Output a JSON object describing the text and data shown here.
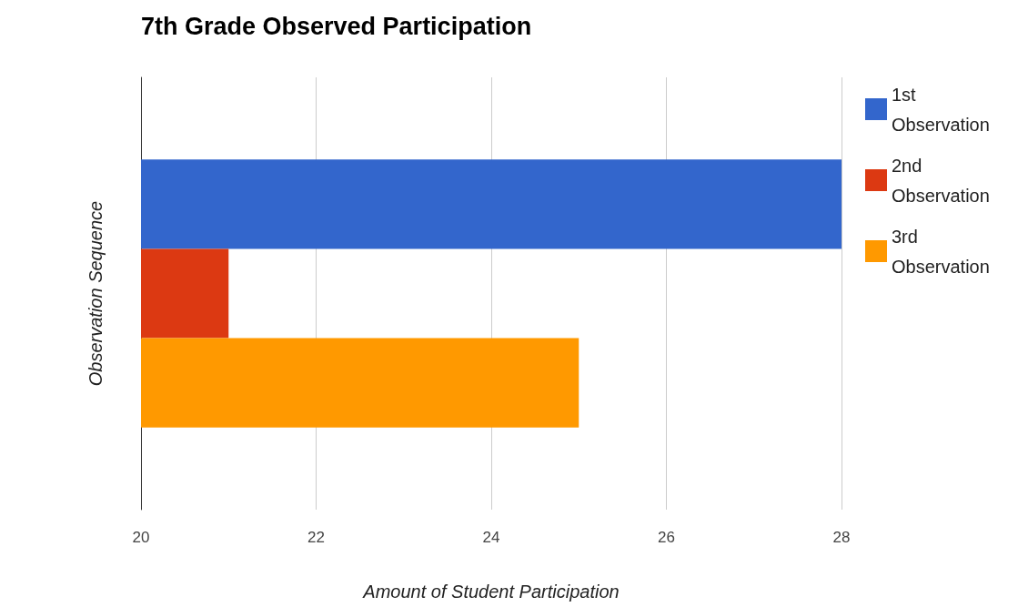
{
  "chart_data": {
    "type": "bar",
    "orientation": "horizontal",
    "title": "7th Grade Observed Participation",
    "xlabel": "Amount of Student Participation",
    "ylabel": "Observation Sequence",
    "categories": [
      null
    ],
    "series": [
      {
        "name": "1st Observation",
        "color": "#3366cc",
        "values": [
          28
        ]
      },
      {
        "name": "2nd Observation",
        "color": "#dc3912",
        "values": [
          21
        ]
      },
      {
        "name": "3rd Observation",
        "color": "#ff9900",
        "values": [
          25
        ]
      }
    ],
    "xlim": [
      20,
      28
    ],
    "xticks": [
      20,
      22,
      24,
      26,
      28
    ],
    "grid": "x",
    "legend": "top right"
  }
}
